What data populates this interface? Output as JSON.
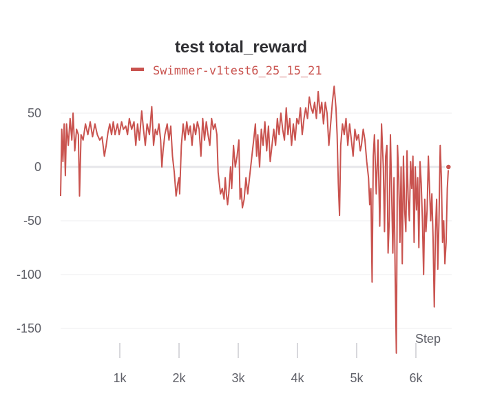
{
  "chart_data": {
    "type": "line",
    "title": "test total_reward",
    "xlabel": "Step",
    "ylabel": "",
    "xlim": [
      0,
      6630
    ],
    "ylim": [
      -180,
      80
    ],
    "x_ticks": [
      1000,
      2000,
      3000,
      4000,
      5000,
      6000
    ],
    "x_tick_labels": [
      "1k",
      "2k",
      "3k",
      "4k",
      "5k",
      "6k"
    ],
    "y_ticks": [
      50,
      0,
      -50,
      -100,
      -150
    ],
    "y_tick_labels": [
      "50",
      "0",
      "-50",
      "-100",
      "-150"
    ],
    "grid": true,
    "legend_position": "top",
    "series": [
      {
        "name": "Swimmer-v1test6_25_15_21",
        "color": "#c9534f",
        "points": [
          [
            0,
            -27
          ],
          [
            20,
            35
          ],
          [
            40,
            5
          ],
          [
            60,
            40
          ],
          [
            80,
            -8
          ],
          [
            100,
            40
          ],
          [
            130,
            20
          ],
          [
            160,
            45
          ],
          [
            190,
            25
          ],
          [
            210,
            50
          ],
          [
            240,
            15
          ],
          [
            270,
            35
          ],
          [
            300,
            30
          ],
          [
            320,
            -27
          ],
          [
            345,
            30
          ],
          [
            380,
            25
          ],
          [
            420,
            40
          ],
          [
            460,
            30
          ],
          [
            500,
            42
          ],
          [
            540,
            28
          ],
          [
            580,
            40
          ],
          [
            620,
            30
          ],
          [
            660,
            25
          ],
          [
            700,
            28
          ],
          [
            740,
            10
          ],
          [
            770,
            20
          ],
          [
            800,
            32
          ],
          [
            830,
            40
          ],
          [
            860,
            30
          ],
          [
            890,
            42
          ],
          [
            920,
            30
          ],
          [
            960,
            40
          ],
          [
            990,
            30
          ],
          [
            1030,
            42
          ],
          [
            1060,
            35
          ],
          [
            1100,
            38
          ],
          [
            1130,
            30
          ],
          [
            1160,
            45
          ],
          [
            1200,
            35
          ],
          [
            1240,
            42
          ],
          [
            1270,
            20
          ],
          [
            1300,
            40
          ],
          [
            1330,
            25
          ],
          [
            1370,
            52
          ],
          [
            1400,
            35
          ],
          [
            1430,
            20
          ],
          [
            1460,
            40
          ],
          [
            1500,
            30
          ],
          [
            1540,
            56
          ],
          [
            1570,
            20
          ],
          [
            1600,
            35
          ],
          [
            1630,
            30
          ],
          [
            1660,
            40
          ],
          [
            1690,
            25
          ],
          [
            1710,
            0
          ],
          [
            1730,
            15
          ],
          [
            1760,
            30
          ],
          [
            1800,
            40
          ],
          [
            1830,
            25
          ],
          [
            1860,
            38
          ],
          [
            1890,
            10
          ],
          [
            1920,
            -5
          ],
          [
            1950,
            -27
          ],
          [
            1980,
            -15
          ],
          [
            2000,
            -10
          ],
          [
            2010,
            -25
          ],
          [
            2040,
            20
          ],
          [
            2070,
            40
          ],
          [
            2100,
            25
          ],
          [
            2130,
            42
          ],
          [
            2160,
            30
          ],
          [
            2190,
            38
          ],
          [
            2220,
            20
          ],
          [
            2250,
            40
          ],
          [
            2280,
            30
          ],
          [
            2310,
            42
          ],
          [
            2340,
            35
          ],
          [
            2370,
            10
          ],
          [
            2400,
            45
          ],
          [
            2430,
            25
          ],
          [
            2460,
            42
          ],
          [
            2490,
            30
          ],
          [
            2520,
            20
          ],
          [
            2550,
            45
          ],
          [
            2580,
            35
          ],
          [
            2610,
            40
          ],
          [
            2640,
            30
          ],
          [
            2660,
            -5
          ],
          [
            2680,
            -15
          ],
          [
            2700,
            -25
          ],
          [
            2730,
            -20
          ],
          [
            2760,
            -30
          ],
          [
            2780,
            -10
          ],
          [
            2800,
            -25
          ],
          [
            2820,
            -35
          ],
          [
            2840,
            -25
          ],
          [
            2870,
            0
          ],
          [
            2890,
            -20
          ],
          [
            2920,
            20
          ],
          [
            2950,
            0
          ],
          [
            2980,
            10
          ],
          [
            3010,
            25
          ],
          [
            3030,
            -30
          ],
          [
            3050,
            -20
          ],
          [
            3070,
            -38
          ],
          [
            3100,
            -30
          ],
          [
            3130,
            -10
          ],
          [
            3160,
            -25
          ],
          [
            3180,
            -15
          ],
          [
            3200,
            -5
          ],
          [
            3230,
            10
          ],
          [
            3260,
            25
          ],
          [
            3290,
            40
          ],
          [
            3310,
            10
          ],
          [
            3330,
            30
          ],
          [
            3360,
            0
          ],
          [
            3390,
            35
          ],
          [
            3420,
            20
          ],
          [
            3450,
            42
          ],
          [
            3480,
            15
          ],
          [
            3510,
            38
          ],
          [
            3540,
            5
          ],
          [
            3570,
            20
          ],
          [
            3600,
            35
          ],
          [
            3630,
            20
          ],
          [
            3660,
            45
          ],
          [
            3690,
            30
          ],
          [
            3720,
            50
          ],
          [
            3750,
            35
          ],
          [
            3780,
            25
          ],
          [
            3810,
            55
          ],
          [
            3840,
            30
          ],
          [
            3870,
            45
          ],
          [
            3900,
            20
          ],
          [
            3930,
            40
          ],
          [
            3960,
            25
          ],
          [
            3990,
            45
          ],
          [
            4020,
            40
          ],
          [
            4050,
            55
          ],
          [
            4080,
            30
          ],
          [
            4110,
            45
          ],
          [
            4140,
            55
          ],
          [
            4170,
            45
          ],
          [
            4200,
            65
          ],
          [
            4230,
            55
          ],
          [
            4260,
            50
          ],
          [
            4290,
            60
          ],
          [
            4320,
            45
          ],
          [
            4350,
            70
          ],
          [
            4380,
            50
          ],
          [
            4410,
            60
          ],
          [
            4440,
            40
          ],
          [
            4470,
            60
          ],
          [
            4500,
            50
          ],
          [
            4530,
            20
          ],
          [
            4560,
            40
          ],
          [
            4590,
            60
          ],
          [
            4620,
            75
          ],
          [
            4650,
            55
          ],
          [
            4670,
            30
          ],
          [
            4690,
            -15
          ],
          [
            4710,
            -45
          ],
          [
            4730,
            20
          ],
          [
            4760,
            40
          ],
          [
            4790,
            30
          ],
          [
            4820,
            45
          ],
          [
            4850,
            20
          ],
          [
            4880,
            40
          ],
          [
            4910,
            25
          ],
          [
            4940,
            10
          ],
          [
            4970,
            35
          ],
          [
            5000,
            25
          ],
          [
            5030,
            30
          ],
          [
            5060,
            15
          ],
          [
            5080,
            20
          ],
          [
            5110,
            35
          ],
          [
            5140,
            25
          ],
          [
            5170,
            5
          ],
          [
            5200,
            -10
          ],
          [
            5220,
            -35
          ],
          [
            5240,
            -20
          ],
          [
            5260,
            -107
          ],
          [
            5280,
            10
          ],
          [
            5300,
            30
          ],
          [
            5330,
            -25
          ],
          [
            5360,
            25
          ],
          [
            5390,
            -55
          ],
          [
            5420,
            40
          ],
          [
            5450,
            0
          ],
          [
            5470,
            -60
          ],
          [
            5490,
            10
          ],
          [
            5510,
            20
          ],
          [
            5530,
            -80
          ],
          [
            5550,
            -50
          ],
          [
            5570,
            30
          ],
          [
            5590,
            -20
          ],
          [
            5610,
            -80
          ],
          [
            5630,
            -10
          ],
          [
            5650,
            -100
          ],
          [
            5670,
            -173
          ],
          [
            5690,
            20
          ],
          [
            5710,
            -10
          ],
          [
            5730,
            -70
          ],
          [
            5750,
            0
          ],
          [
            5770,
            -90
          ],
          [
            5790,
            10
          ],
          [
            5810,
            -40
          ],
          [
            5830,
            -60
          ],
          [
            5850,
            15
          ],
          [
            5870,
            -30
          ],
          [
            5890,
            -50
          ],
          [
            5910,
            5
          ],
          [
            5930,
            -20
          ],
          [
            5950,
            10
          ],
          [
            5970,
            -70
          ],
          [
            5990,
            0
          ],
          [
            6010,
            -40
          ],
          [
            6030,
            -10
          ],
          [
            6050,
            -75
          ],
          [
            6070,
            5
          ],
          [
            6090,
            -15
          ],
          [
            6110,
            -50
          ],
          [
            6130,
            -100
          ],
          [
            6150,
            -30
          ],
          [
            6170,
            -60
          ],
          [
            6190,
            -40
          ],
          [
            6210,
            10
          ],
          [
            6230,
            -20
          ],
          [
            6250,
            -50
          ],
          [
            6270,
            -25
          ],
          [
            6290,
            -65
          ],
          [
            6310,
            -130
          ],
          [
            6330,
            -60
          ],
          [
            6350,
            -30
          ],
          [
            6370,
            -95
          ],
          [
            6390,
            -50
          ],
          [
            6410,
            20
          ],
          [
            6430,
            -10
          ],
          [
            6450,
            -70
          ],
          [
            6470,
            -50
          ],
          [
            6490,
            -90
          ],
          [
            6510,
            -70
          ],
          [
            6530,
            -20
          ],
          [
            6550,
            0
          ]
        ],
        "end_marker": [
          6550,
          0
        ]
      }
    ]
  }
}
